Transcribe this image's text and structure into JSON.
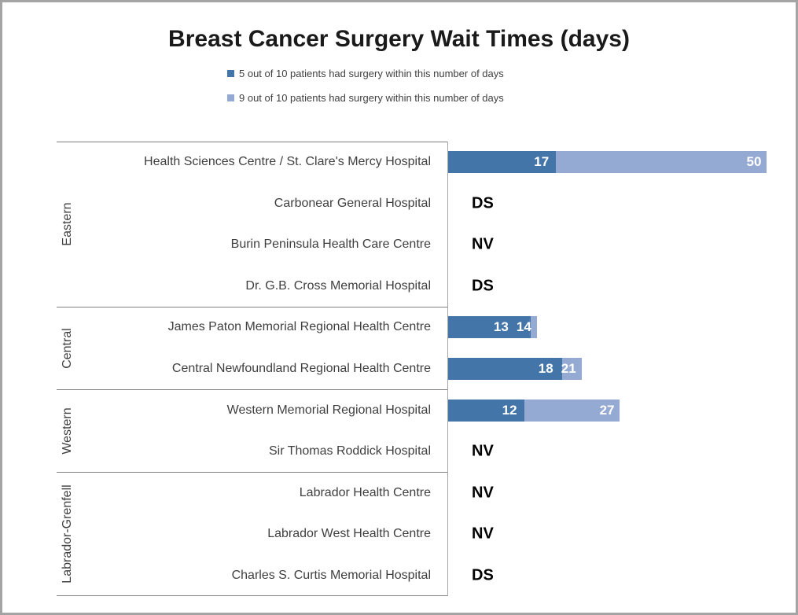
{
  "chart_data": {
    "type": "bar",
    "orientation": "horizontal",
    "title": "Breast Cancer Surgery Wait Times (days)",
    "series_names": [
      "5 out of 10 patients had surgery within this number of days",
      "9 out of 10 patients had surgery within this number of days"
    ],
    "colors": {
      "series1": "#4375A9",
      "series2": "#95AAD3"
    },
    "xlim": [
      0,
      54
    ],
    "grid": false,
    "legend_position": "top",
    "value_label_color": "#ffffff",
    "groups": [
      {
        "region": "Eastern",
        "rows": [
          {
            "hospital": "Health Sciences Centre / St. Clare's Mercy Hospital",
            "p50": 17,
            "p90": 50
          },
          {
            "hospital": "Carbonear General Hospital",
            "status": "DS"
          },
          {
            "hospital": "Burin Peninsula Health Care Centre",
            "status": "NV"
          },
          {
            "hospital": "Dr. G.B. Cross Memorial Hospital",
            "status": "DS"
          }
        ]
      },
      {
        "region": "Central",
        "rows": [
          {
            "hospital": "James Paton Memorial Regional Health Centre",
            "p50": 13,
            "p90": 14
          },
          {
            "hospital": "Central Newfoundland Regional Health Centre",
            "p50": 18,
            "p90": 21
          }
        ]
      },
      {
        "region": "Western",
        "rows": [
          {
            "hospital": "Western Memorial Regional Hospital",
            "p50": 12,
            "p90": 27
          },
          {
            "hospital": "Sir Thomas Roddick Hospital",
            "status": "NV"
          }
        ]
      },
      {
        "region": "Labrador-Grenfell",
        "rows": [
          {
            "hospital": "Labrador Health Centre",
            "status": "NV"
          },
          {
            "hospital": "Labrador West Health Centre",
            "status": "NV"
          },
          {
            "hospital": "Charles S. Curtis Memorial Hospital",
            "status": "DS"
          }
        ]
      }
    ]
  }
}
